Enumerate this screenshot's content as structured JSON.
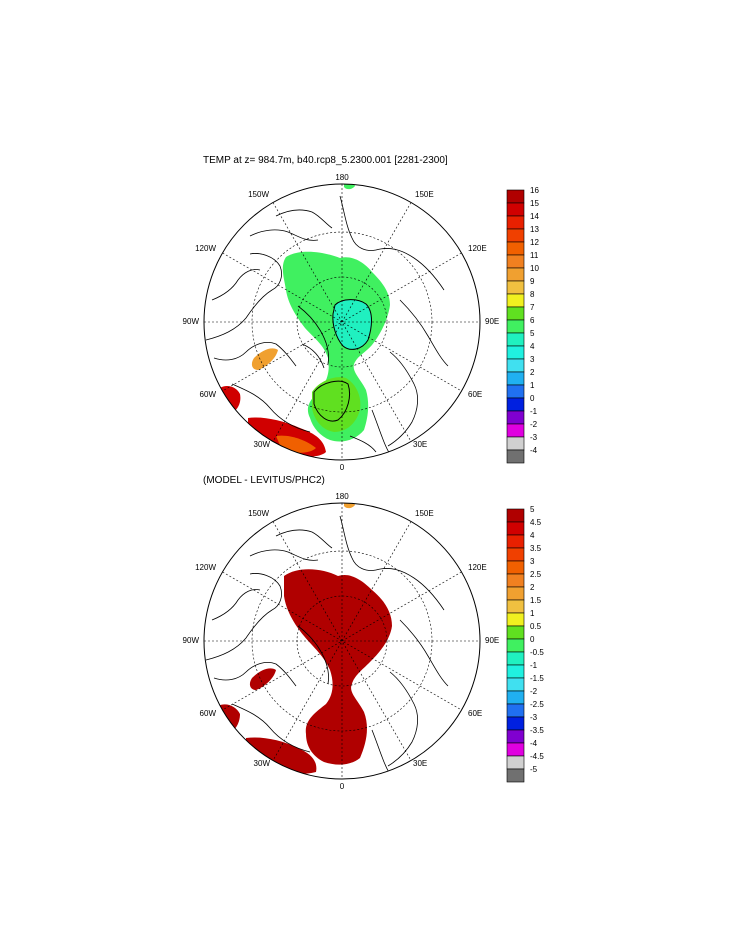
{
  "panel_top": {
    "title": "TEMP at z= 984.7m, b40.rcp8_5.2300.001 [2281-2300]",
    "lon_labels": [
      "180",
      "150E",
      "120E",
      "90E",
      "60E",
      "30E",
      "0",
      "30W",
      "60W",
      "90W",
      "120W",
      "150W"
    ],
    "colorbar_labels": [
      "16",
      "15",
      "14",
      "13",
      "12",
      "11",
      "10",
      "9",
      "8",
      "7",
      "6",
      "5",
      "4",
      "3",
      "2",
      "1",
      "0",
      "-1",
      "-2",
      "-3",
      "-4"
    ]
  },
  "panel_bottom": {
    "title": "(MODEL - LEVITUS/PHC2)",
    "lon_labels": [
      "180",
      "150E",
      "120E",
      "90E",
      "60E",
      "30E",
      "0",
      "30W",
      "60W",
      "90W",
      "120W",
      "150W"
    ],
    "colorbar_labels": [
      "5",
      "4.5",
      "4",
      "3.5",
      "3",
      "2.5",
      "2",
      "1.5",
      "1",
      "0.5",
      "0",
      "-0.5",
      "-1",
      "-1.5",
      "-2",
      "-2.5",
      "-3",
      "-3.5",
      "-4",
      "-4.5",
      "-5"
    ]
  },
  "colors": {
    "top_scale": [
      "#b00000",
      "#d00000",
      "#e82000",
      "#f04000",
      "#f06000",
      "#f08020",
      "#f0a030",
      "#f0c040",
      "#f0f020",
      "#60e020",
      "#40f060",
      "#20f0c0",
      "#20f0e0",
      "#40e0f0",
      "#20b0f0",
      "#2070f0",
      "#0020e0",
      "#8000d0",
      "#e000e0",
      "#d0d0d0",
      "#707070"
    ],
    "bottom_scale": [
      "#b00000",
      "#d00000",
      "#e82000",
      "#f04000",
      "#f06000",
      "#f08020",
      "#f0a030",
      "#f0c040",
      "#f0f020",
      "#60e020",
      "#40f060",
      "#20f0c0",
      "#20f0e0",
      "#40e0f0",
      "#20b0f0",
      "#2070f0",
      "#0020e0",
      "#8000d0",
      "#e000e0",
      "#d0d0d0",
      "#707070"
    ]
  }
}
